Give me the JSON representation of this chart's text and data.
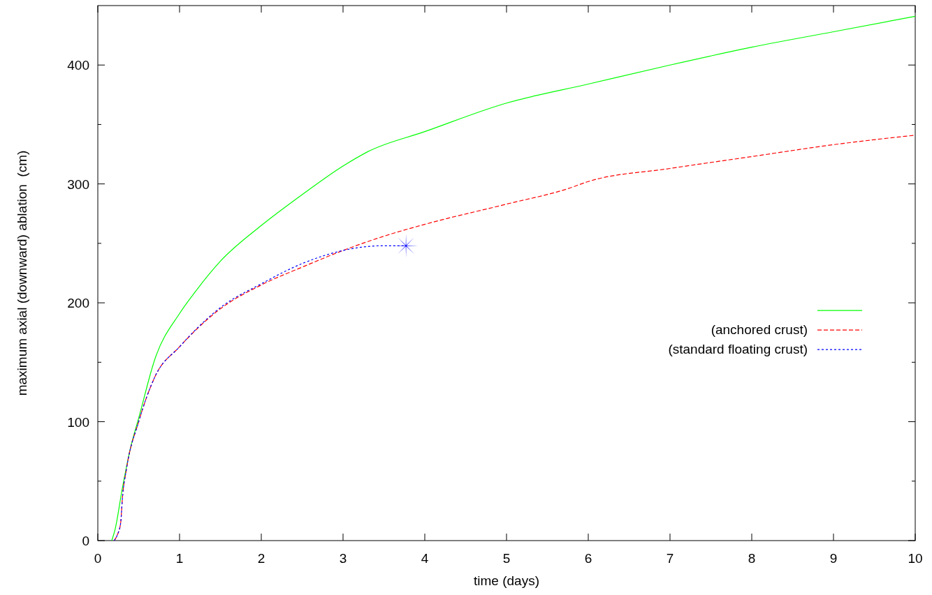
{
  "chart_data": {
    "type": "line",
    "xlabel": "time (days)",
    "ylabel": "maximum axial (downward) ablation  (cm)",
    "xlim": [
      0,
      10
    ],
    "ylim": [
      0,
      450
    ],
    "xticks": [
      0,
      1,
      2,
      3,
      4,
      5,
      6,
      7,
      8,
      9,
      10
    ],
    "yticks": [
      0,
      100,
      200,
      300,
      400
    ],
    "grid": false,
    "legend": "right",
    "series": [
      {
        "color": "#00ff00",
        "line_style": "solid",
        "x": [
          0.17,
          0.21,
          0.3,
          0.4,
          0.5,
          0.7,
          1,
          1.2,
          1.5,
          2,
          2.5,
          3,
          3.3,
          4,
          5,
          6,
          7,
          8,
          9,
          10
        ],
        "values": [
          0,
          9,
          44,
          78,
          103,
          153,
          191,
          210,
          235,
          265,
          291,
          315,
          327,
          344,
          368,
          384,
          400,
          415,
          428,
          441
        ]
      },
      {
        "name": "(anchored crust)",
        "color": "#ff0000",
        "line_style": "dashed",
        "x": [
          0.2,
          0.24,
          0.28,
          0.3,
          0.35,
          0.5,
          0.7,
          1,
          1.5,
          2,
          2.5,
          3,
          3.5,
          4,
          5,
          5.75,
          6,
          7,
          8,
          9,
          10
        ],
        "values": [
          0,
          5,
          15,
          35,
          60,
          100,
          138,
          163,
          195,
          215,
          230,
          244,
          256,
          266,
          283,
          296,
          302,
          313,
          323,
          333,
          341
        ]
      },
      {
        "name": "(standard floating crust)",
        "color": "#0000ff",
        "line_style": "dotted",
        "x": [
          0.2,
          0.24,
          0.28,
          0.3,
          0.35,
          0.5,
          0.7,
          1,
          1.5,
          2,
          2.5,
          3,
          3.25,
          3.5,
          3.77
        ],
        "values": [
          0,
          5,
          15,
          35,
          60,
          100,
          138,
          163,
          196,
          216,
          233,
          244,
          247,
          248,
          248
        ]
      },
      {
        "type": "scatter",
        "color": "#0000ff",
        "marker": "star",
        "x": [
          3.77
        ],
        "values": [
          248
        ]
      }
    ]
  }
}
